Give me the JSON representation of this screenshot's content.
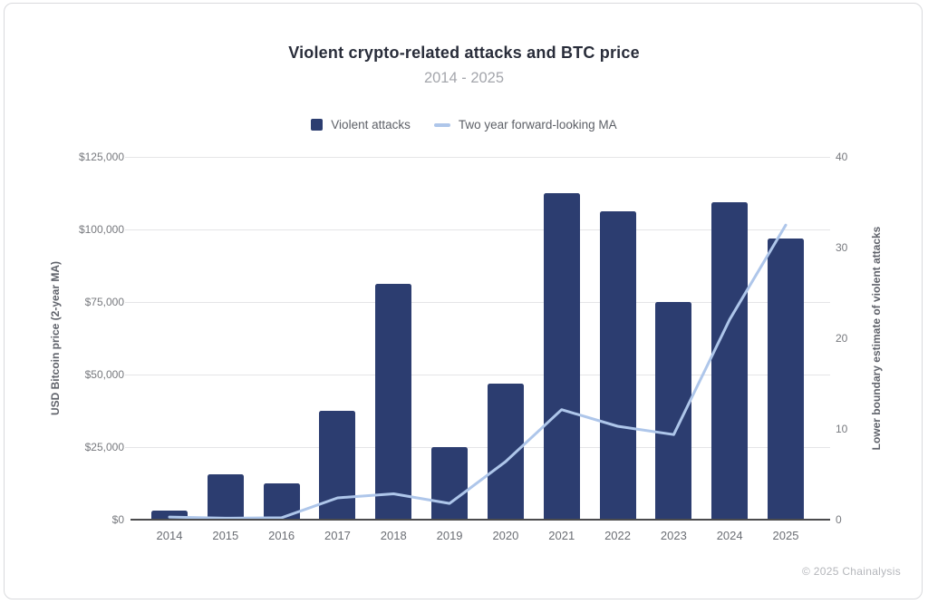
{
  "page": {
    "footer": "© 2025 Chainalysis"
  },
  "chart": {
    "title": "Violent crypto-related attacks and BTC price",
    "subtitle": "2014 - 2025",
    "legend": [
      {
        "label": "Violent attacks",
        "shape": "square",
        "color": "#2c3d70"
      },
      {
        "label": "Two year forward-looking MA",
        "shape": "line",
        "color": "#aec6ea"
      }
    ],
    "left_axis": {
      "title": "USD Bitcoin price (2-year MA)",
      "ticks": [
        "$0",
        "$25,000",
        "$50,000",
        "$75,000",
        "$100,000",
        "$125,000"
      ],
      "min": 0,
      "max": 125000
    },
    "right_axis": {
      "title": "Lower boundary estimate of violent attacks",
      "ticks": [
        "0",
        "10",
        "20",
        "30",
        "40"
      ],
      "min": 0,
      "max": 40
    }
  },
  "chart_data": {
    "type": "bar",
    "title": "Violent crypto-related attacks and BTC price",
    "subtitle": "2014 - 2025",
    "categories": [
      "2014",
      "2015",
      "2016",
      "2017",
      "2018",
      "2019",
      "2020",
      "2021",
      "2022",
      "2023",
      "2024",
      "2025"
    ],
    "series": [
      {
        "name": "Violent attacks",
        "type": "bar",
        "axis": "right",
        "color": "#2c3d70",
        "values": [
          1,
          5,
          4,
          12,
          26,
          8,
          15,
          36,
          34,
          24,
          35,
          31
        ]
      },
      {
        "name": "Two year forward-looking MA",
        "type": "line",
        "axis": "left",
        "color": "#aec6ea",
        "values": [
          900,
          500,
          650,
          7500,
          8900,
          5600,
          20000,
          37900,
          32200,
          29300,
          69000,
          101500
        ]
      }
    ],
    "xlabel": "",
    "ylabel_left": "USD Bitcoin price (2-year MA)",
    "ylabel_right": "Lower boundary estimate of violent attacks",
    "ylim_left": [
      0,
      125000
    ],
    "ylim_right": [
      0,
      40
    ],
    "grid": true,
    "legend_position": "top"
  }
}
